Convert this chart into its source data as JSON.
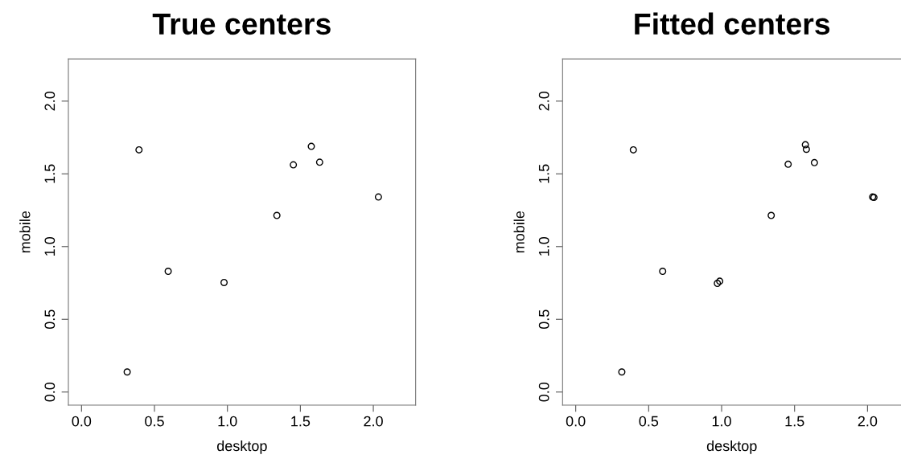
{
  "chart_data": [
    {
      "type": "scatter",
      "title": "True centers",
      "xlabel": "desktop",
      "ylabel": "mobile",
      "x": [
        0.313,
        0.394,
        0.594,
        0.977,
        1.339,
        1.452,
        1.575,
        1.632,
        2.035
      ],
      "values": [
        0.138,
        1.665,
        0.83,
        0.753,
        1.214,
        1.562,
        1.689,
        1.58,
        1.341
      ],
      "color": "#000000",
      "marker": "circle",
      "xlim": [
        -0.09,
        2.29
      ],
      "ylim": [
        -0.09,
        2.29
      ],
      "xticks": [
        {
          "value": 0,
          "label": "0.0"
        },
        {
          "value": 0.5,
          "label": "0.5"
        },
        {
          "value": 1,
          "label": "1.0"
        },
        {
          "value": 1.5,
          "label": "1.5"
        },
        {
          "value": 2,
          "label": "2.0"
        }
      ],
      "yticks": [
        {
          "value": 0,
          "label": "0.0"
        },
        {
          "value": 0.5,
          "label": "0.5"
        },
        {
          "value": 1,
          "label": "1.0"
        },
        {
          "value": 1.5,
          "label": "1.5"
        },
        {
          "value": 2,
          "label": "2.0"
        }
      ],
      "grid": false
    },
    {
      "type": "scatter",
      "title": "Fitted centers",
      "xlabel": "desktop",
      "ylabel": "mobile",
      "x": [
        0.316,
        0.395,
        0.596,
        0.971,
        0.987,
        1.34,
        1.456,
        1.574,
        1.581,
        1.636,
        2.035,
        2.044
      ],
      "values": [
        0.138,
        1.665,
        0.83,
        0.747,
        0.762,
        1.214,
        1.566,
        1.7,
        1.669,
        1.577,
        1.341,
        1.338
      ],
      "color": "#000000",
      "marker": "circle",
      "xlim": [
        -0.09,
        2.23
      ],
      "ylim": [
        -0.09,
        2.29
      ],
      "xticks": [
        {
          "value": 0,
          "label": "0.0"
        },
        {
          "value": 0.5,
          "label": "0.5"
        },
        {
          "value": 1,
          "label": "1.0"
        },
        {
          "value": 1.5,
          "label": "1.5"
        },
        {
          "value": 2,
          "label": "2.0"
        }
      ],
      "yticks": [
        {
          "value": 0,
          "label": "0.0"
        },
        {
          "value": 0.5,
          "label": "0.5"
        },
        {
          "value": 1,
          "label": "1.0"
        },
        {
          "value": 1.5,
          "label": "1.5"
        },
        {
          "value": 2,
          "label": "2.0"
        }
      ],
      "grid": false
    }
  ]
}
